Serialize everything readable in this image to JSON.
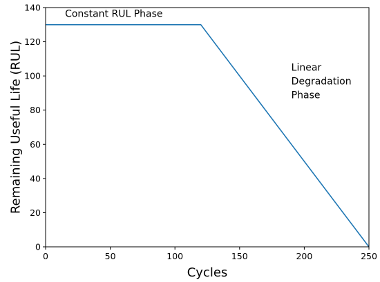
{
  "chart_data": {
    "type": "line",
    "title": "",
    "xlabel": "Cycles",
    "ylabel": "Remaining Useful Life (RUL)",
    "xlim": [
      0,
      250
    ],
    "ylim": [
      0,
      140
    ],
    "xticks": [
      0,
      50,
      100,
      150,
      200,
      250
    ],
    "yticks": [
      0,
      20,
      40,
      60,
      80,
      100,
      120,
      140
    ],
    "grid": false,
    "series": [
      {
        "x": [
          0,
          120,
          250
        ],
        "y": [
          130,
          130,
          0
        ],
        "color": "#1f77b4"
      }
    ],
    "annotations": [
      {
        "lines": [
          "Constant RUL Phase"
        ],
        "x": 15,
        "y": 134.5,
        "align": "start"
      },
      {
        "lines": [
          "Linear",
          "Degradation",
          "Phase"
        ],
        "x": 190,
        "y": 103,
        "align": "start"
      }
    ]
  }
}
